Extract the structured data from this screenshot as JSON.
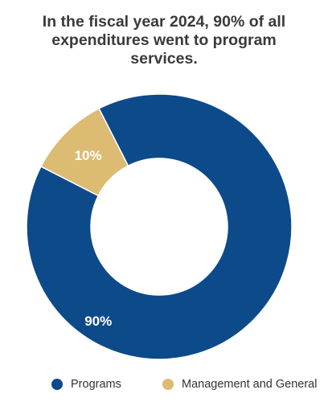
{
  "chart_data": {
    "type": "pie",
    "title": "In the fiscal year 2024, 90% of all expenditures went to program services.",
    "categories": [
      "Programs",
      "Management and General"
    ],
    "values": [
      90,
      10
    ],
    "value_labels": [
      "90%",
      "10%"
    ],
    "colors": [
      "#0d4a8a",
      "#dcbb73"
    ],
    "donut": true,
    "legend_position": "bottom"
  }
}
